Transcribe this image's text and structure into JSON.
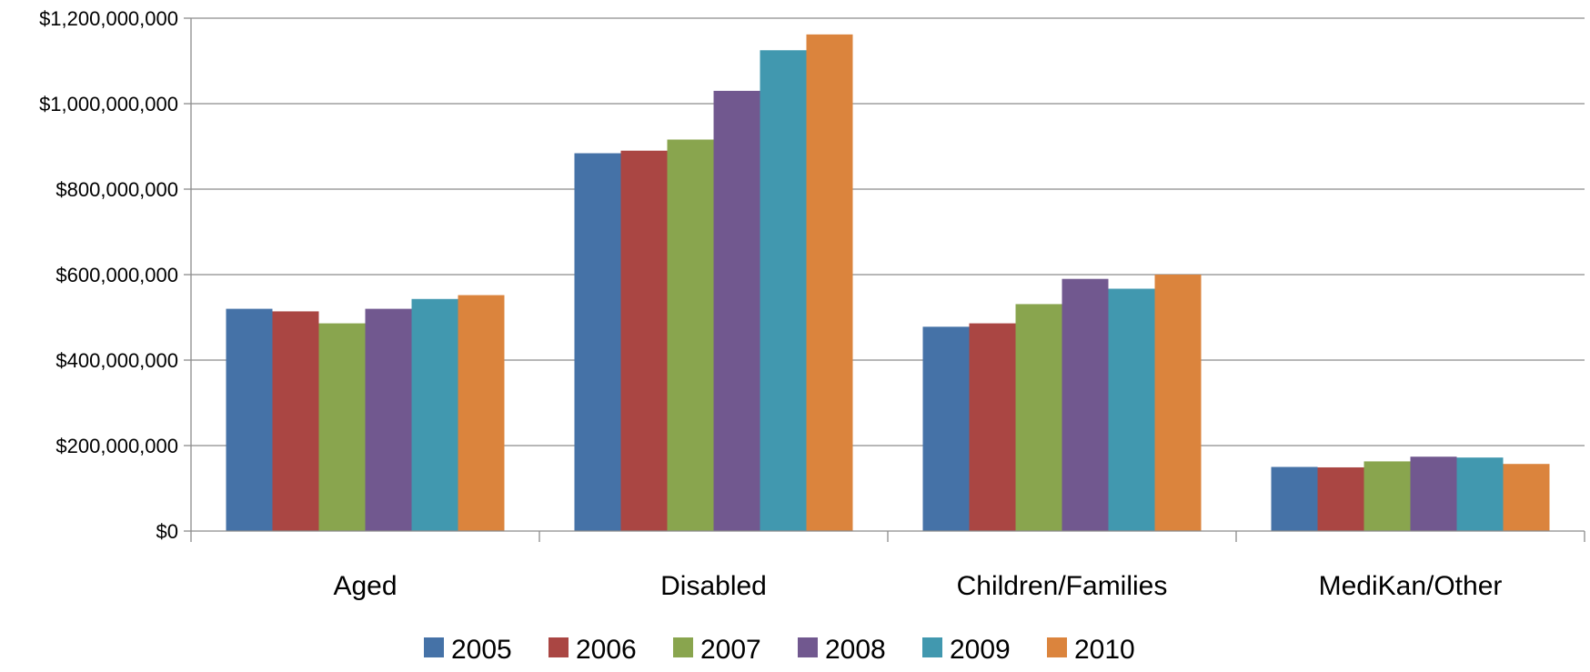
{
  "chart_data": {
    "type": "bar",
    "title": "",
    "xlabel": "",
    "ylabel": "",
    "categories": [
      "Aged",
      "Disabled",
      "Children/Families",
      "MediKan/Other"
    ],
    "series": [
      {
        "name": "2005",
        "color": "#4572a7",
        "values": [
          520000000,
          884000000,
          478000000,
          150000000
        ]
      },
      {
        "name": "2006",
        "color": "#aa4643",
        "values": [
          514000000,
          890000000,
          486000000,
          149000000
        ]
      },
      {
        "name": "2007",
        "color": "#89a54e",
        "values": [
          486000000,
          916000000,
          531000000,
          163000000
        ]
      },
      {
        "name": "2008",
        "color": "#71588f",
        "values": [
          520000000,
          1030000000,
          590000000,
          174000000
        ]
      },
      {
        "name": "2009",
        "color": "#4198af",
        "values": [
          543000000,
          1125000000,
          567000000,
          172000000
        ]
      },
      {
        "name": "2010",
        "color": "#db843d",
        "values": [
          552000000,
          1162000000,
          600000000,
          157000000
        ]
      }
    ],
    "ylim": [
      0,
      1200000000
    ],
    "yticks": [
      0,
      200000000,
      400000000,
      600000000,
      800000000,
      1000000000,
      1200000000
    ],
    "ytick_labels": [
      "$0",
      "$200,000,000",
      "$400,000,000",
      "$600,000,000",
      "$800,000,000",
      "$1,000,000,000",
      "$1,200,000,000"
    ],
    "grid": true,
    "legend_position": "bottom"
  }
}
